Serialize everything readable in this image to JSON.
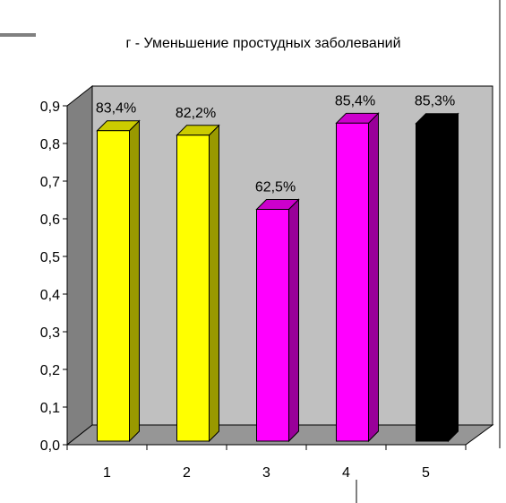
{
  "chart_data": {
    "type": "bar",
    "title": "г - Уменьшение простудных заболеваний",
    "categories": [
      "1",
      "2",
      "3",
      "4",
      "5"
    ],
    "values": [
      0.834,
      0.822,
      0.625,
      0.854,
      0.853
    ],
    "data_labels": [
      "83,4%",
      "82,2%",
      "62,5%",
      "85,4%",
      "85,3%"
    ],
    "bar_colors": [
      "#ffff00",
      "#ffff00",
      "#ff00ff",
      "#ff00ff",
      "#000000"
    ],
    "yticks": [
      "0,0",
      "0,1",
      "0,2",
      "0,3",
      "0,4",
      "0,5",
      "0,6",
      "0,7",
      "0,8",
      "0,9"
    ],
    "ylim": [
      0,
      0.9
    ],
    "xlabel": "",
    "ylabel": "",
    "grid": false,
    "legend": "none",
    "style": "3d-column",
    "wall_color": "#c0c0c0",
    "floor_color": "#969696",
    "side_wall_color": "#808080"
  }
}
